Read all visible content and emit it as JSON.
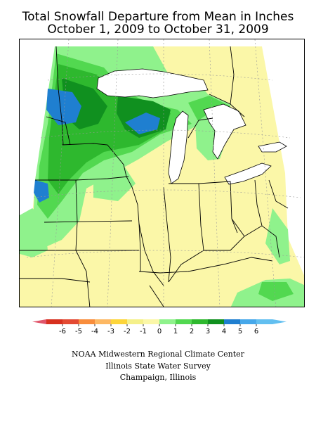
{
  "title": {
    "line1": "Total Snowfall Departure from Mean in Inches",
    "line2": "October 1, 2009 to October 31, 2009"
  },
  "legend": {
    "ticks": [
      "-6",
      "-5",
      "-4",
      "-3",
      "-2",
      "-1",
      "0",
      "1",
      "2",
      "3",
      "4",
      "5",
      "6"
    ],
    "colors": [
      "#d7301f",
      "#e34a33",
      "#f88d3c",
      "#fdb863",
      "#fdd53a",
      "#f5f08a",
      "#fbf7a8",
      "#8ff28c",
      "#52d850",
      "#2eb82e",
      "#10901f",
      "#1f7fd0",
      "#46a8ea",
      "#62bff0"
    ],
    "low_arrow_color": "#e0556a",
    "high_arrow_color": "#62bff0"
  },
  "map_colors": {
    "above_normal_pale": "#fbf7a8",
    "light_green": "#8ff28c",
    "medium_green": "#52d850",
    "green": "#2eb82e",
    "dark_green": "#10901f",
    "blue": "#1f7fd0",
    "lake": "#ffffff",
    "border": "#000000"
  },
  "credits": {
    "line1": "NOAA Midwestern Regional Climate Center",
    "line2": "Illinois State Water Survey",
    "line3": "Champaign, Illinois"
  }
}
